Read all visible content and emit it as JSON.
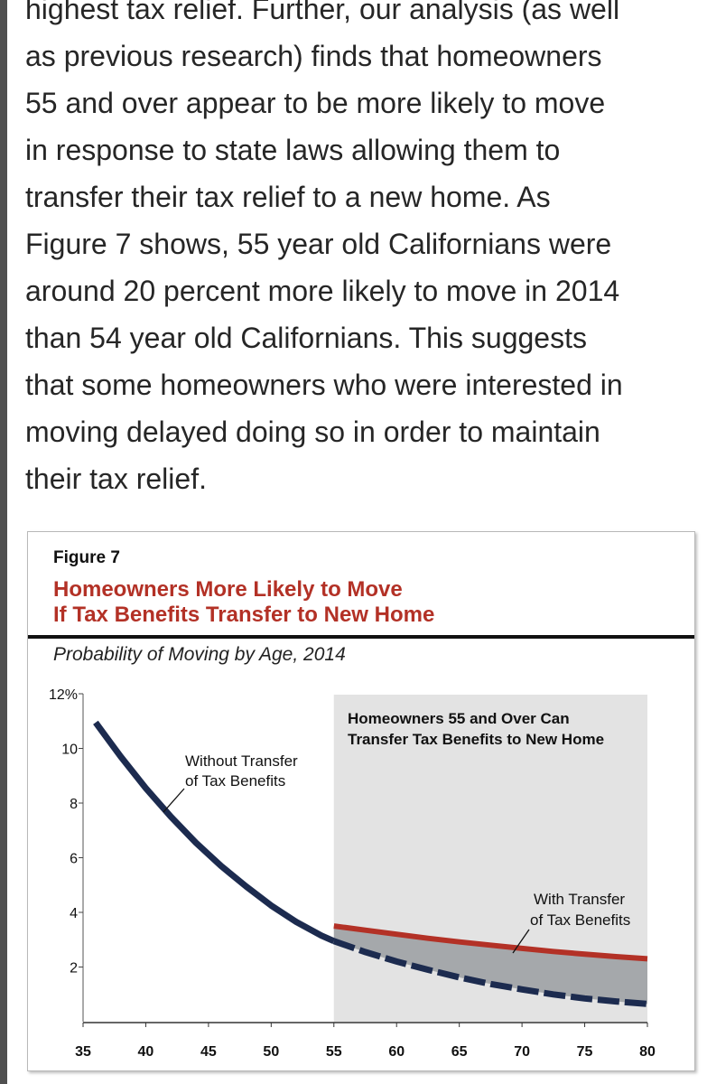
{
  "article": {
    "lines": [
      "highest tax relief. Further, our analysis (as well",
      "as previous research) finds that homeowners",
      "55 and over appear to be more likely to move",
      "in response to state laws allowing them to",
      "transfer their tax relief to a new home. As",
      "Figure 7 shows, 55 year old Californians were",
      "around 20 percent more likely to move in 2014",
      "than 54 year old Californians. This suggests",
      "that some homeowners who were interested in",
      "moving delayed doing so in order to maintain",
      "their tax relief."
    ]
  },
  "figure": {
    "label": "Figure 7",
    "title_line1": "Homeowners More Likely to Move",
    "title_line2": "If Tax Benefits Transfer to New Home",
    "subtitle": "Probability of Moving by Age, 2014"
  },
  "chart_data": {
    "type": "line",
    "title": "Homeowners More Likely to Move If Tax Benefits Transfer to New Home",
    "subtitle": "Probability of Moving by Age, 2014",
    "xlabel": "",
    "ylabel": "",
    "xlim": [
      35,
      80
    ],
    "ylim": [
      0,
      12
    ],
    "x_ticks": [
      "35",
      "40",
      "45",
      "50",
      "55",
      "60",
      "65",
      "70",
      "75",
      "80"
    ],
    "y_ticks": [
      {
        "value": 2,
        "label": "2"
      },
      {
        "value": 4,
        "label": "4"
      },
      {
        "value": 6,
        "label": "6"
      },
      {
        "value": 8,
        "label": "8"
      },
      {
        "value": 10,
        "label": "10"
      },
      {
        "value": 12,
        "label": "12%"
      }
    ],
    "shaded_region": {
      "x_start": 55,
      "x_end": 80,
      "label_line1": "Homeowners 55 and Over Can",
      "label_line2": "Transfer Tax Benefits to New Home"
    },
    "series": [
      {
        "name": "Without Transfer of Tax Benefits",
        "label_line1": "Without Transfer",
        "label_line2": "of Tax Benefits",
        "color": "#1c2b4f",
        "x": [
          36,
          38,
          40,
          42,
          44,
          46,
          48,
          50,
          52,
          54,
          55,
          57.5,
          60,
          62.5,
          65,
          67.5,
          70,
          72.5,
          75,
          77.5,
          80
        ],
        "y": [
          10.95,
          9.7,
          8.55,
          7.5,
          6.55,
          5.7,
          4.95,
          4.25,
          3.65,
          3.15,
          2.95,
          2.55,
          2.2,
          1.9,
          1.62,
          1.38,
          1.18,
          1.0,
          0.85,
          0.74,
          0.65
        ]
      },
      {
        "name": "With Transfer of Tax Benefits",
        "label_line1": "With Transfer",
        "label_line2": "of Tax Benefits",
        "color": "#b33126",
        "x": [
          55,
          57.5,
          60,
          62.5,
          65,
          67.5,
          70,
          72.5,
          75,
          77.5,
          80
        ],
        "y": [
          3.5,
          3.35,
          3.2,
          3.05,
          2.92,
          2.8,
          2.68,
          2.57,
          2.47,
          2.38,
          2.3
        ]
      }
    ],
    "colors": {
      "shade": "#e3e3e3",
      "gap_fill": "#a5a8ab",
      "title_red": "#b33126"
    }
  }
}
